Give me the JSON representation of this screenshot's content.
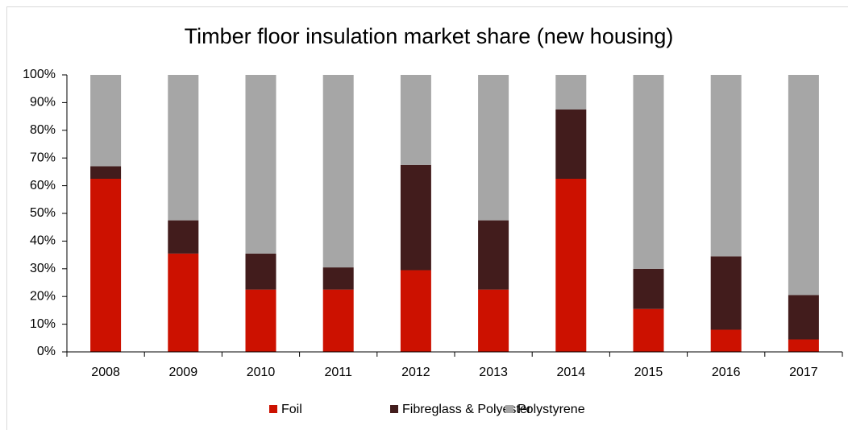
{
  "chart_data": {
    "type": "stacked_bar",
    "title": "Timber floor insulation market share (new housing)",
    "categories": [
      "2008",
      "2009",
      "2010",
      "2011",
      "2012",
      "2013",
      "2014",
      "2015",
      "2016",
      "2017"
    ],
    "series": [
      {
        "name": "Foil",
        "color": "#cc1100",
        "values": [
          62.5,
          35.5,
          22.5,
          22.5,
          29.5,
          22.5,
          62.5,
          15.5,
          8,
          4.5
        ]
      },
      {
        "name": "Fibreglass & Polyester",
        "color": "#421c1c",
        "values": [
          4.5,
          12,
          13,
          8,
          38,
          25,
          25,
          14.5,
          26.5,
          16
        ]
      },
      {
        "name": "Polystyrene",
        "color": "#a6a6a6",
        "values": [
          33,
          52.5,
          64.5,
          69.5,
          32.5,
          52.5,
          12.5,
          70,
          65.5,
          79.5
        ]
      }
    ],
    "ylim": [
      0,
      100
    ],
    "yticks": [
      {
        "value": 0,
        "label": "0%"
      },
      {
        "value": 10,
        "label": "10%"
      },
      {
        "value": 20,
        "label": "20%"
      },
      {
        "value": 30,
        "label": "30%"
      },
      {
        "value": 40,
        "label": "40%"
      },
      {
        "value": 50,
        "label": "50%"
      },
      {
        "value": 60,
        "label": "60%"
      },
      {
        "value": 70,
        "label": "70%"
      },
      {
        "value": 80,
        "label": "80%"
      },
      {
        "value": 90,
        "label": "90%"
      },
      {
        "value": 100,
        "label": "100%"
      }
    ],
    "legend": "bottom"
  }
}
